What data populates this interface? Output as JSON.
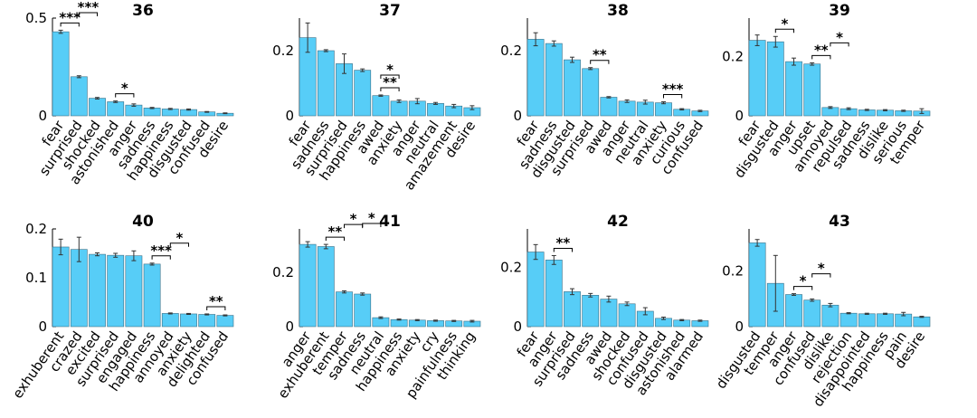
{
  "style": {
    "bar_color": "#57cdf7",
    "bar_edge": "#3a6f86",
    "error_color": "#333333"
  },
  "chart_data": [
    {
      "type": "bar",
      "title": "36",
      "categories": [
        "fear",
        "surprised",
        "shocked",
        "astonished",
        "anger",
        "sadness",
        "happiness",
        "disgusted",
        "confused",
        "desire"
      ],
      "values": [
        0.43,
        0.2,
        0.09,
        0.072,
        0.055,
        0.04,
        0.035,
        0.032,
        0.02,
        0.013
      ],
      "errors": [
        0.008,
        0.005,
        0.004,
        0.004,
        0.006,
        0.003,
        0.003,
        0.003,
        0.002,
        0.002
      ],
      "ylim": [
        0,
        0.5
      ],
      "yticks": [
        0,
        0.5
      ],
      "ytick_labels": [
        "0",
        "0.5"
      ],
      "significance": [
        {
          "from": 0,
          "to": 1,
          "label": "***"
        },
        {
          "from": 1,
          "to": 2,
          "label": "***"
        },
        {
          "from": 3,
          "to": 4,
          "label": "*"
        }
      ]
    },
    {
      "type": "bar",
      "title": "37",
      "categories": [
        "fear",
        "sadness",
        "surprised",
        "happiness",
        "awed",
        "anxiety",
        "anger",
        "neutral",
        "amazement",
        "desire"
      ],
      "values": [
        0.24,
        0.2,
        0.16,
        0.14,
        0.062,
        0.045,
        0.045,
        0.038,
        0.03,
        0.025
      ],
      "errors": [
        0.045,
        0.003,
        0.03,
        0.004,
        0.002,
        0.004,
        0.008,
        0.003,
        0.005,
        0.006
      ],
      "ylim": [
        0,
        0.3
      ],
      "yticks": [
        0,
        0.2
      ],
      "ytick_labels": [
        "0",
        "0.2"
      ],
      "significance": [
        {
          "from": 4,
          "to": 5,
          "label": "**"
        },
        {
          "from": 4,
          "to": 5,
          "label": "*"
        }
      ]
    },
    {
      "type": "bar",
      "title": "38",
      "categories": [
        "fear",
        "sadness",
        "disgusted",
        "surprised",
        "awed",
        "anger",
        "neutral",
        "anxiety",
        "curious",
        "confused"
      ],
      "values": [
        0.235,
        0.222,
        0.172,
        0.145,
        0.057,
        0.045,
        0.042,
        0.04,
        0.02,
        0.015
      ],
      "errors": [
        0.02,
        0.008,
        0.008,
        0.003,
        0.002,
        0.004,
        0.006,
        0.003,
        0.002,
        0.002
      ],
      "ylim": [
        0,
        0.3
      ],
      "yticks": [
        0,
        0.2
      ],
      "ytick_labels": [
        "0",
        "0.2"
      ],
      "significance": [
        {
          "from": 3,
          "to": 4,
          "label": "**"
        },
        {
          "from": 7,
          "to": 8,
          "label": "***"
        }
      ]
    },
    {
      "type": "bar",
      "title": "39",
      "categories": [
        "fear",
        "disgusted",
        "anger",
        "upset",
        "annoyed",
        "repulsed",
        "sadness",
        "dislike",
        "serious",
        "temper"
      ],
      "values": [
        0.255,
        0.25,
        0.183,
        0.175,
        0.028,
        0.024,
        0.02,
        0.019,
        0.017,
        0.016
      ],
      "errors": [
        0.018,
        0.018,
        0.012,
        0.004,
        0.003,
        0.003,
        0.002,
        0.002,
        0.002,
        0.008
      ],
      "ylim": [
        0,
        0.33
      ],
      "yticks": [
        0,
        0.2
      ],
      "ytick_labels": [
        "0",
        "0.2"
      ],
      "significance": [
        {
          "from": 1,
          "to": 2,
          "label": "*"
        },
        {
          "from": 3,
          "to": 4,
          "label": "**"
        },
        {
          "from": 4,
          "to": 5,
          "label": "*"
        }
      ]
    },
    {
      "type": "bar",
      "title": "40",
      "categories": [
        "exhuberent",
        "crazed",
        "excited",
        "surprised",
        "engaged",
        "happiness",
        "annoyed",
        "anxiety",
        "delighted",
        "confused"
      ],
      "values": [
        0.163,
        0.158,
        0.148,
        0.146,
        0.145,
        0.128,
        0.027,
        0.026,
        0.025,
        0.023
      ],
      "errors": [
        0.016,
        0.025,
        0.003,
        0.004,
        0.01,
        0.002,
        0.001,
        0.001,
        0.001,
        0.001
      ],
      "ylim": [
        0,
        0.2
      ],
      "yticks": [
        0,
        0.1,
        0.2
      ],
      "ytick_labels": [
        "0",
        "0.1",
        "0.2"
      ],
      "significance": [
        {
          "from": 5,
          "to": 6,
          "label": "***"
        },
        {
          "from": 6,
          "to": 7,
          "label": "*"
        },
        {
          "from": 8,
          "to": 9,
          "label": "**"
        }
      ]
    },
    {
      "type": "bar",
      "title": "41",
      "categories": [
        "anger",
        "exhuberent",
        "temper",
        "sadness",
        "neutral",
        "happiness",
        "anxiety",
        "cry",
        "painfulness",
        "thinking"
      ],
      "values": [
        0.303,
        0.295,
        0.128,
        0.12,
        0.033,
        0.026,
        0.024,
        0.022,
        0.021,
        0.02
      ],
      "errors": [
        0.01,
        0.008,
        0.004,
        0.004,
        0.003,
        0.002,
        0.002,
        0.002,
        0.002,
        0.003
      ],
      "ylim": [
        0,
        0.36
      ],
      "yticks": [
        0,
        0.2
      ],
      "ytick_labels": [
        "0",
        "0.2"
      ],
      "significance": [
        {
          "from": 1,
          "to": 2,
          "label": "**"
        },
        {
          "from": 2,
          "to": 3,
          "label": "*"
        },
        {
          "from": 3,
          "to": 4,
          "label": "*"
        }
      ]
    },
    {
      "type": "bar",
      "title": "42",
      "categories": [
        "fear",
        "anger",
        "surprised",
        "sadness",
        "awed",
        "shocked",
        "confused",
        "disgusted",
        "astonished",
        "alarmed"
      ],
      "values": [
        0.252,
        0.225,
        0.118,
        0.106,
        0.093,
        0.077,
        0.052,
        0.028,
        0.022,
        0.02
      ],
      "errors": [
        0.025,
        0.015,
        0.01,
        0.006,
        0.01,
        0.006,
        0.012,
        0.004,
        0.002,
        0.002
      ],
      "ylim": [
        0,
        0.33
      ],
      "yticks": [
        0,
        0.2
      ],
      "ytick_labels": [
        "0",
        "0.2"
      ],
      "significance": [
        {
          "from": 1,
          "to": 2,
          "label": "**"
        }
      ]
    },
    {
      "type": "bar",
      "title": "43",
      "categories": [
        "disgusted",
        "temper",
        "anger",
        "confused",
        "dislike",
        "rejection",
        "disappointed",
        "happiness",
        "pain",
        "desire"
      ],
      "values": [
        0.3,
        0.155,
        0.115,
        0.095,
        0.077,
        0.048,
        0.046,
        0.046,
        0.045,
        0.035
      ],
      "errors": [
        0.012,
        0.1,
        0.003,
        0.004,
        0.006,
        0.002,
        0.002,
        0.002,
        0.006,
        0.002
      ],
      "ylim": [
        0,
        0.35
      ],
      "yticks": [
        0,
        0.2
      ],
      "ytick_labels": [
        "0",
        "0.2"
      ],
      "significance": [
        {
          "from": 2,
          "to": 3,
          "label": "*"
        },
        {
          "from": 3,
          "to": 4,
          "label": "*"
        }
      ]
    }
  ]
}
